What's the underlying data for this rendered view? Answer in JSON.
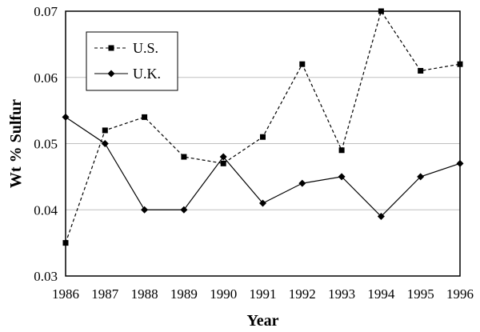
{
  "chart_data": {
    "type": "line",
    "x": [
      1986,
      1987,
      1988,
      1989,
      1990,
      1991,
      1992,
      1993,
      1994,
      1995,
      1996
    ],
    "series": [
      {
        "name": "U.S.",
        "values": [
          0.035,
          0.052,
          0.054,
          0.048,
          0.047,
          0.051,
          0.062,
          0.049,
          0.07,
          0.061,
          0.062
        ],
        "line_style": "dashed",
        "marker": "square",
        "color": "#000000"
      },
      {
        "name": "U.K.",
        "values": [
          0.054,
          0.05,
          0.04,
          0.04,
          0.048,
          0.041,
          0.044,
          0.045,
          0.039,
          0.045,
          0.047
        ],
        "line_style": "solid",
        "marker": "diamond",
        "color": "#000000"
      }
    ],
    "xlabel": "Year",
    "ylabel": "Wt % Sulfur",
    "xlim": [
      1986,
      1996
    ],
    "ylim": [
      0.03,
      0.07
    ],
    "x_ticks": [
      "1986",
      "1987",
      "1988",
      "1989",
      "1990",
      "1991",
      "1992",
      "1993",
      "1994",
      "1995",
      "1996"
    ],
    "y_ticks": [
      "0.03",
      "0.04",
      "0.05",
      "0.06",
      "0.07"
    ],
    "grid": "horizontal",
    "legend_position": "top-left"
  }
}
